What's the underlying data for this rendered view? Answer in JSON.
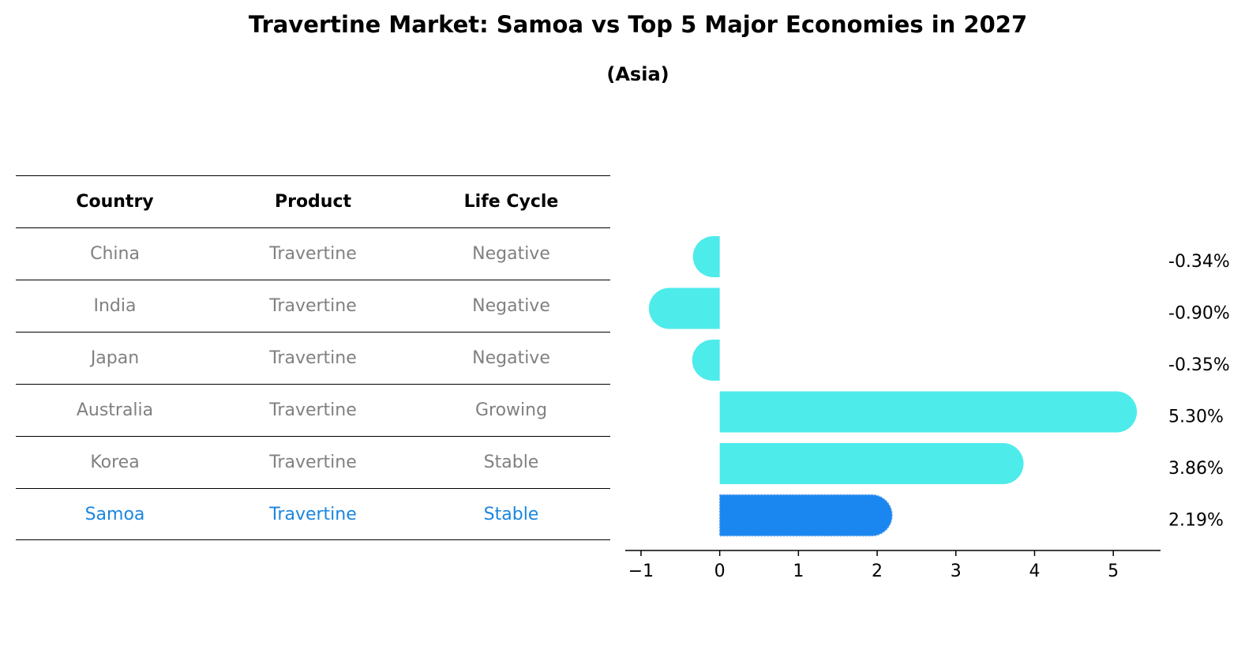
{
  "title": "Travertine Market: Samoa vs Top 5 Major Economies in 2027",
  "subtitle": "(Asia)",
  "table": {
    "headers": [
      "Country",
      "Product",
      "Life Cycle"
    ],
    "rows": [
      {
        "country": "China",
        "product": "Travertine",
        "life_cycle": "Negative"
      },
      {
        "country": "India",
        "product": "Travertine",
        "life_cycle": "Negative"
      },
      {
        "country": "Japan",
        "product": "Travertine",
        "life_cycle": "Negative"
      },
      {
        "country": "Australia",
        "product": "Travertine",
        "life_cycle": "Growing"
      },
      {
        "country": "Korea",
        "product": "Travertine",
        "life_cycle": "Stable"
      },
      {
        "country": "Samoa",
        "product": "Travertine",
        "life_cycle": "Stable"
      }
    ]
  },
  "chart_data": {
    "type": "bar",
    "orientation": "horizontal",
    "categories": [
      "China",
      "India",
      "Japan",
      "Australia",
      "Korea",
      "Samoa"
    ],
    "values": [
      -0.34,
      -0.9,
      -0.35,
      5.3,
      3.86,
      2.19
    ],
    "value_labels": [
      "-0.34%",
      "-0.90%",
      "-0.35%",
      "5.30%",
      "3.86%",
      "2.19%"
    ],
    "highlight": "Samoa",
    "xlim": [
      -1.2,
      5.6
    ],
    "xticks": [
      -1,
      0,
      1,
      2,
      3,
      4,
      5
    ],
    "xtick_labels": [
      "−1",
      "0",
      "1",
      "2",
      "3",
      "4",
      "5"
    ],
    "grid": false,
    "colors": {
      "bar": "#4eebeb",
      "highlight": "#1a86f0",
      "axis": "#000000"
    }
  }
}
